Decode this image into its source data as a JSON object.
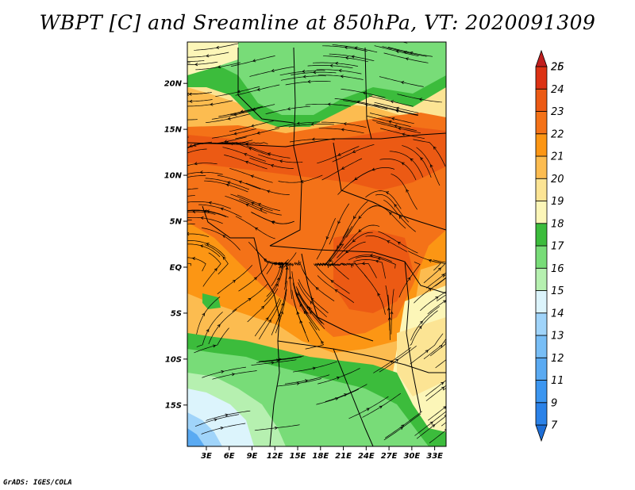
{
  "title": "WBPT [C] and Sreamline at 850hPa, VT: 2020091309",
  "credit": "GrADS: IGES/COLA",
  "lat_ticks": [
    {
      "label": "20N",
      "lat": 20
    },
    {
      "label": "15N",
      "lat": 15
    },
    {
      "label": "10N",
      "lat": 10
    },
    {
      "label": "5N",
      "lat": 5
    },
    {
      "label": "EQ",
      "lat": 0
    },
    {
      "label": "5S",
      "lat": -5
    },
    {
      "label": "10S",
      "lat": -10
    },
    {
      "label": "15S",
      "lat": -15
    }
  ],
  "lon_ticks": [
    {
      "label": "3E",
      "lon": 3
    },
    {
      "label": "6E",
      "lon": 6
    },
    {
      "label": "9E",
      "lon": 9
    },
    {
      "label": "12E",
      "lon": 12
    },
    {
      "label": "15E",
      "lon": 15
    },
    {
      "label": "18E",
      "lon": 18
    },
    {
      "label": "21E",
      "lon": 21
    },
    {
      "label": "24E",
      "lon": 24
    },
    {
      "label": "27E",
      "lon": 27
    },
    {
      "label": "30E",
      "lon": 30
    },
    {
      "label": "33E",
      "lon": 33
    }
  ],
  "domain": {
    "lon_min": 0.5,
    "lon_max": 34.5,
    "lat_min": -19.5,
    "lat_max": 24.5
  },
  "colorbar": {
    "levels": [
      "7",
      "9",
      "11",
      "12",
      "13",
      "14",
      "15",
      "16",
      "17",
      "18",
      "19",
      "20",
      "21",
      "22",
      "23",
      "24",
      "25",
      "26"
    ],
    "colors": [
      "#1e6ed6",
      "#2b82e8",
      "#3c96f0",
      "#5aaaf2",
      "#78bef6",
      "#a0d4fa",
      "#dcf4fc",
      "#b6f0b0",
      "#78dc78",
      "#3cbc3c",
      "#fcf6b8",
      "#fce494",
      "#fcbc50",
      "#fc9614",
      "#f47218",
      "#ec5a14",
      "#dc3214",
      "#c01e1e"
    ]
  }
}
